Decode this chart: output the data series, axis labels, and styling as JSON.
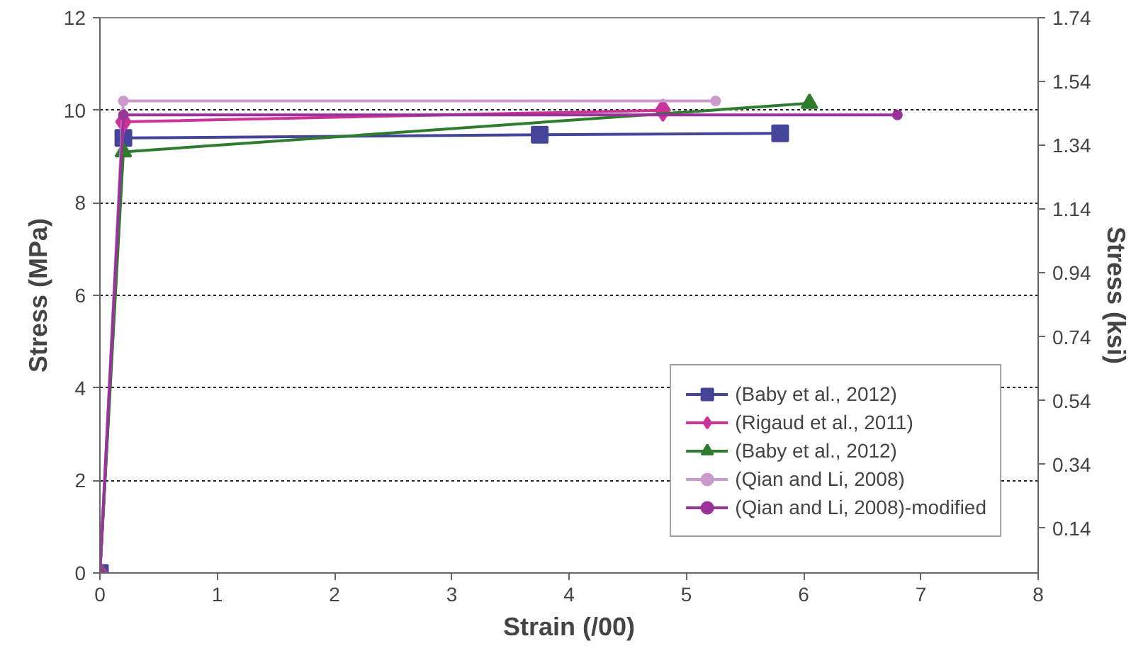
{
  "chart_data": {
    "type": "line",
    "xlabel": "Strain (/00)",
    "ylabel": "Stress (MPa)",
    "y2label": "Stress (ksi)",
    "xlim": [
      0,
      8
    ],
    "xticks": [
      0,
      1,
      2,
      3,
      4,
      5,
      6,
      7,
      8
    ],
    "ylim": [
      0,
      12
    ],
    "yticks": [
      0,
      2,
      4,
      6,
      8,
      10,
      12
    ],
    "y2lim": [
      0,
      1.74
    ],
    "y2ticks": [
      0.14,
      0.34,
      0.54,
      0.74,
      0.94,
      1.14,
      1.34,
      1.54,
      1.74
    ],
    "grid": "y",
    "legend": "bottom right",
    "line_style": "solid",
    "series": [
      {
        "name": "(Baby et al., 2012)",
        "color": "#44449a",
        "marker": "square",
        "x": [
          0,
          0.2,
          3.75,
          5.8
        ],
        "values": [
          0,
          9.4,
          9.47,
          9.5
        ]
      },
      {
        "name": "(Rigaud et al., 2011)",
        "color": "#cc3399",
        "marker": "diamond",
        "x": [
          0,
          0.2,
          4.8
        ],
        "values": [
          0,
          9.75,
          10.0
        ]
      },
      {
        "name": "(Baby et al., 2012)",
        "color": "#2e7d2e",
        "marker": "triangle",
        "x": [
          0,
          0.2,
          6.05
        ],
        "values": [
          0,
          9.1,
          10.15
        ]
      },
      {
        "name": "(Qian and Li, 2008)",
        "color": "#cc99cc",
        "marker": "circle",
        "x": [
          0,
          0.2,
          5.25
        ],
        "values": [
          0,
          10.2,
          10.2
        ]
      },
      {
        "name": "(Qian and Li, 2008)-modified",
        "color": "#993399",
        "marker": "circle",
        "x": [
          0,
          0.2,
          6.8
        ],
        "values": [
          0,
          9.9,
          9.9
        ]
      }
    ]
  }
}
